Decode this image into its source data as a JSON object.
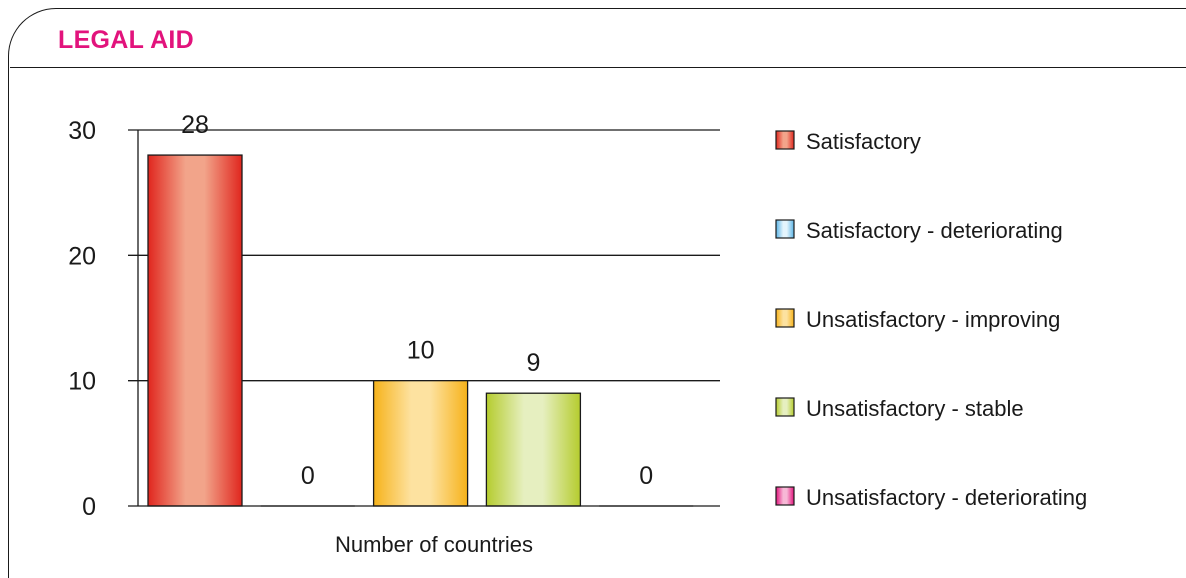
{
  "panel": {
    "title": "LEGAL AID"
  },
  "chart_data": {
    "type": "bar",
    "title": "LEGAL AID",
    "xlabel": "Number of countries",
    "ylabel": "",
    "ylim": [
      0,
      30
    ],
    "yticks": [
      0,
      10,
      20,
      30
    ],
    "grid": true,
    "legend_position": "right",
    "series": [
      {
        "name": "Satisfactory",
        "value": 28,
        "color_dark": "#e0261e",
        "color_light": "#f2a48a",
        "label": "28"
      },
      {
        "name": "Satisfactory - deteriorating",
        "value": 0,
        "color_dark": "#5ab4e6",
        "color_light": "#e4f4fc",
        "label": "0"
      },
      {
        "name": "Unsatisfactory - improving",
        "value": 10,
        "color_dark": "#f6b21a",
        "color_light": "#fde2a0",
        "label": "10"
      },
      {
        "name": "Unsatisfactory - stable",
        "value": 9,
        "color_dark": "#b5cc2e",
        "color_light": "#e6efc0",
        "label": "9"
      },
      {
        "name": "Unsatisfactory - deteriorating",
        "value": 0,
        "color_dark": "#e2137c",
        "color_light": "#f7b8d6",
        "label": "0"
      }
    ]
  }
}
